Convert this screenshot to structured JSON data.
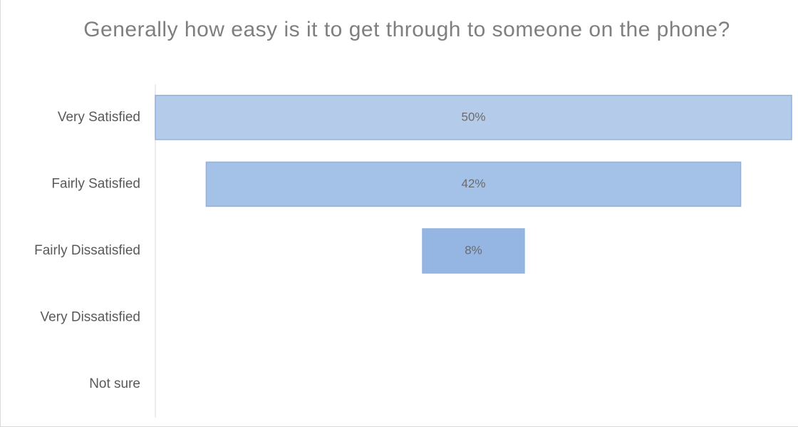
{
  "chart_data": {
    "type": "bar",
    "orientation": "horizontal",
    "style": "funnel",
    "title": "Generally how easy is it to get through to someone on the phone?",
    "categories": [
      "Very Satisfied",
      "Fairly Satisfied",
      "Fairly Dissatisfied",
      "Very Dissatisfied",
      "Not sure"
    ],
    "values": [
      50,
      42,
      8,
      0,
      0
    ],
    "data_labels": [
      "50%",
      "42%",
      "8%",
      "",
      ""
    ],
    "unit": "%",
    "xlim": [
      0,
      50
    ],
    "grid": false,
    "legend": "none",
    "colors": {
      "bar_fills": [
        "#b4cbe9",
        "#a4c1e7",
        "#95b6e3"
      ],
      "bar_stroke": "#8fb2e0",
      "axis_line": "#d9d9d9",
      "title": "#7f7f7f",
      "category_text": "#595959",
      "data_label_text": "#6b6b6b"
    }
  }
}
